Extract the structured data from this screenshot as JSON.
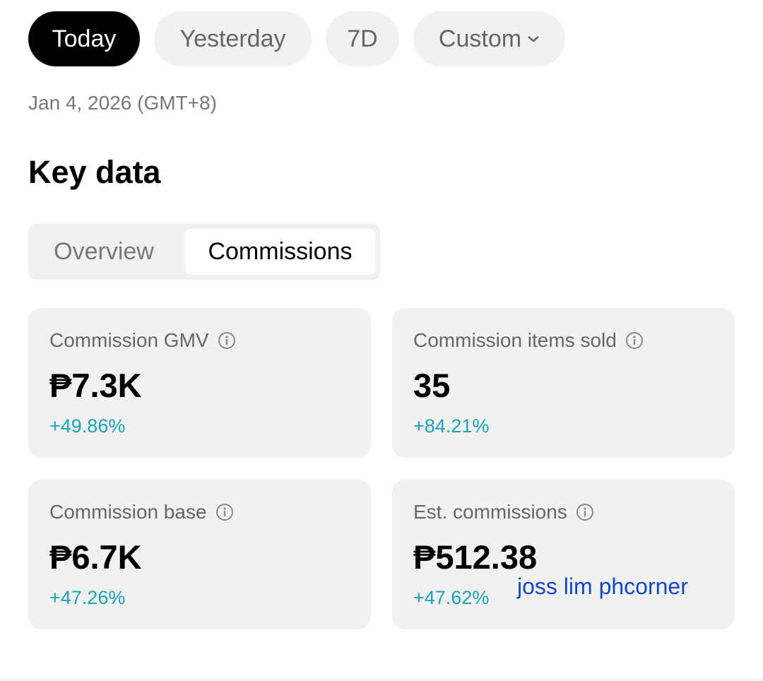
{
  "filters": {
    "items": [
      "Today",
      "Yesterday",
      "7D",
      "Custom"
    ]
  },
  "date": "Jan 4, 2026 (GMT+8)",
  "section_title": "Key data",
  "tabs": {
    "items": [
      "Overview",
      "Commissions"
    ]
  },
  "cards": [
    {
      "label": "Commission GMV",
      "value": "₱7.3K",
      "change": "+49.86%"
    },
    {
      "label": "Commission items sold",
      "value": "35",
      "change": "+84.21%"
    },
    {
      "label": "Commission base",
      "value": "₱6.7K",
      "change": "+47.26%"
    },
    {
      "label": "Est. commissions",
      "value": "₱512.38",
      "change": "+47.62%"
    }
  ],
  "annotation": "joss lim phcorner"
}
